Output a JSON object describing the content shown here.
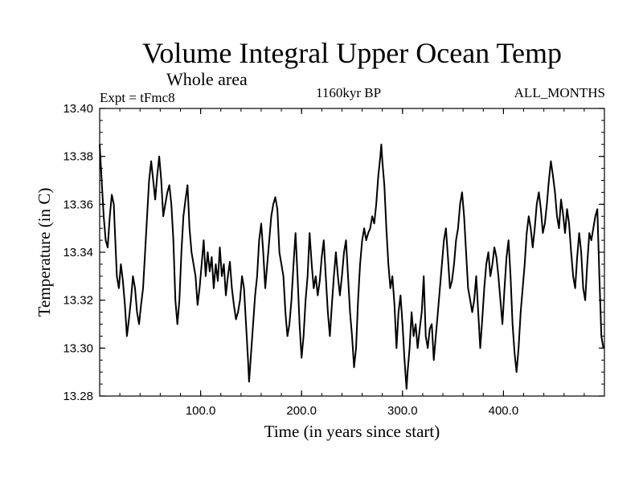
{
  "chart_data": {
    "type": "line",
    "title": "Volume Integral Upper Ocean Temp",
    "subtitle": "Whole area",
    "experiment": "Expt = tFmc8",
    "period": "1160kyr BP",
    "months": "ALL_MONTHS",
    "xlabel": "Time (in years since start)",
    "ylabel": "Temperature (in C)",
    "xlim": [
      0,
      500
    ],
    "ylim": [
      13.28,
      13.4
    ],
    "xticks": [
      100,
      200,
      300,
      400
    ],
    "xtick_labels": [
      "100.0",
      "200.0",
      "300.0",
      "400.0"
    ],
    "yticks": [
      13.28,
      13.3,
      13.32,
      13.34,
      13.36,
      13.38,
      13.4
    ],
    "ytick_labels": [
      "13.28",
      "13.30",
      "13.32",
      "13.34",
      "13.36",
      "13.38",
      "13.40"
    ],
    "series": [
      {
        "name": "Temperature",
        "points": [
          [
            0,
            13.385
          ],
          [
            2,
            13.37
          ],
          [
            4,
            13.355
          ],
          [
            6,
            13.345
          ],
          [
            8,
            13.342
          ],
          [
            10,
            13.355
          ],
          [
            12,
            13.364
          ],
          [
            14,
            13.36
          ],
          [
            15,
            13.35
          ],
          [
            17,
            13.33
          ],
          [
            19,
            13.325
          ],
          [
            21,
            13.335
          ],
          [
            23,
            13.328
          ],
          [
            25,
            13.318
          ],
          [
            27,
            13.305
          ],
          [
            29,
            13.312
          ],
          [
            31,
            13.32
          ],
          [
            33,
            13.33
          ],
          [
            35,
            13.325
          ],
          [
            37,
            13.315
          ],
          [
            39,
            13.31
          ],
          [
            41,
            13.318
          ],
          [
            43,
            13.325
          ],
          [
            45,
            13.34
          ],
          [
            47,
            13.355
          ],
          [
            49,
            13.37
          ],
          [
            51,
            13.378
          ],
          [
            53,
            13.37
          ],
          [
            55,
            13.362
          ],
          [
            57,
            13.372
          ],
          [
            59,
            13.38
          ],
          [
            61,
            13.37
          ],
          [
            63,
            13.355
          ],
          [
            65,
            13.36
          ],
          [
            67,
            13.365
          ],
          [
            69,
            13.368
          ],
          [
            71,
            13.36
          ],
          [
            73,
            13.345
          ],
          [
            75,
            13.32
          ],
          [
            77,
            13.31
          ],
          [
            79,
            13.32
          ],
          [
            81,
            13.34
          ],
          [
            83,
            13.355
          ],
          [
            85,
            13.362
          ],
          [
            87,
            13.368
          ],
          [
            89,
            13.35
          ],
          [
            91,
            13.34
          ],
          [
            93,
            13.335
          ],
          [
            95,
            13.33
          ],
          [
            97,
            13.318
          ],
          [
            99,
            13.325
          ],
          [
            101,
            13.335
          ],
          [
            103,
            13.345
          ],
          [
            105,
            13.33
          ],
          [
            107,
            13.34
          ],
          [
            109,
            13.332
          ],
          [
            111,
            13.338
          ],
          [
            113,
            13.325
          ],
          [
            115,
            13.335
          ],
          [
            117,
            13.328
          ],
          [
            119,
            13.342
          ],
          [
            121,
            13.33
          ],
          [
            123,
            13.335
          ],
          [
            125,
            13.322
          ],
          [
            127,
            13.33
          ],
          [
            129,
            13.336
          ],
          [
            131,
            13.325
          ],
          [
            133,
            13.318
          ],
          [
            135,
            13.312
          ],
          [
            137,
            13.315
          ],
          [
            139,
            13.32
          ],
          [
            141,
            13.33
          ],
          [
            143,
            13.325
          ],
          [
            145,
            13.31
          ],
          [
            147,
            13.295
          ],
          [
            148,
            13.286
          ],
          [
            150,
            13.298
          ],
          [
            152,
            13.31
          ],
          [
            154,
            13.322
          ],
          [
            156,
            13.33
          ],
          [
            158,
            13.345
          ],
          [
            160,
            13.352
          ],
          [
            162,
            13.34
          ],
          [
            164,
            13.325
          ],
          [
            166,
            13.335
          ],
          [
            168,
            13.345
          ],
          [
            170,
            13.355
          ],
          [
            172,
            13.36
          ],
          [
            174,
            13.363
          ],
          [
            176,
            13.358
          ],
          [
            178,
            13.34
          ],
          [
            180,
            13.335
          ],
          [
            182,
            13.33
          ],
          [
            184,
            13.315
          ],
          [
            186,
            13.305
          ],
          [
            188,
            13.31
          ],
          [
            190,
            13.32
          ],
          [
            192,
            13.335
          ],
          [
            194,
            13.348
          ],
          [
            196,
            13.33
          ],
          [
            198,
            13.31
          ],
          [
            200,
            13.296
          ],
          [
            202,
            13.305
          ],
          [
            204,
            13.32
          ],
          [
            206,
            13.33
          ],
          [
            208,
            13.348
          ],
          [
            210,
            13.335
          ],
          [
            212,
            13.325
          ],
          [
            214,
            13.33
          ],
          [
            216,
            13.322
          ],
          [
            218,
            13.328
          ],
          [
            220,
            13.338
          ],
          [
            222,
            13.345
          ],
          [
            224,
            13.33
          ],
          [
            226,
            13.315
          ],
          [
            228,
            13.305
          ],
          [
            230,
            13.318
          ],
          [
            232,
            13.33
          ],
          [
            234,
            13.34
          ],
          [
            236,
            13.33
          ],
          [
            238,
            13.322
          ],
          [
            240,
            13.33
          ],
          [
            242,
            13.34
          ],
          [
            244,
            13.345
          ],
          [
            246,
            13.33
          ],
          [
            248,
            13.315
          ],
          [
            250,
            13.305
          ],
          [
            252,
            13.292
          ],
          [
            254,
            13.3
          ],
          [
            256,
            13.32
          ],
          [
            258,
            13.335
          ],
          [
            260,
            13.345
          ],
          [
            262,
            13.35
          ],
          [
            264,
            13.345
          ],
          [
            266,
            13.348
          ],
          [
            268,
            13.35
          ],
          [
            270,
            13.355
          ],
          [
            272,
            13.352
          ],
          [
            274,
            13.36
          ],
          [
            276,
            13.372
          ],
          [
            278,
            13.38
          ],
          [
            279,
            13.385
          ],
          [
            280,
            13.378
          ],
          [
            282,
            13.368
          ],
          [
            284,
            13.35
          ],
          [
            286,
            13.335
          ],
          [
            288,
            13.325
          ],
          [
            290,
            13.33
          ],
          [
            292,
            13.318
          ],
          [
            294,
            13.3
          ],
          [
            296,
            13.315
          ],
          [
            298,
            13.322
          ],
          [
            300,
            13.31
          ],
          [
            302,
            13.295
          ],
          [
            304,
            13.283
          ],
          [
            305,
            13.29
          ],
          [
            307,
            13.3
          ],
          [
            309,
            13.315
          ],
          [
            311,
            13.305
          ],
          [
            313,
            13.31
          ],
          [
            315,
            13.3
          ],
          [
            317,
            13.308
          ],
          [
            319,
            13.315
          ],
          [
            321,
            13.33
          ],
          [
            323,
            13.305
          ],
          [
            325,
            13.3
          ],
          [
            327,
            13.308
          ],
          [
            329,
            13.31
          ],
          [
            331,
            13.295
          ],
          [
            333,
            13.305
          ],
          [
            335,
            13.315
          ],
          [
            337,
            13.325
          ],
          [
            339,
            13.335
          ],
          [
            341,
            13.345
          ],
          [
            343,
            13.35
          ],
          [
            345,
            13.338
          ],
          [
            347,
            13.325
          ],
          [
            349,
            13.328
          ],
          [
            351,
            13.335
          ],
          [
            353,
            13.345
          ],
          [
            355,
            13.35
          ],
          [
            357,
            13.36
          ],
          [
            359,
            13.365
          ],
          [
            361,
            13.355
          ],
          [
            363,
            13.34
          ],
          [
            365,
            13.325
          ],
          [
            367,
            13.32
          ],
          [
            369,
            13.315
          ],
          [
            371,
            13.32
          ],
          [
            373,
            13.33
          ],
          [
            375,
            13.315
          ],
          [
            377,
            13.3
          ],
          [
            379,
            13.312
          ],
          [
            381,
            13.325
          ],
          [
            383,
            13.335
          ],
          [
            385,
            13.34
          ],
          [
            387,
            13.33
          ],
          [
            389,
            13.335
          ],
          [
            391,
            13.342
          ],
          [
            393,
            13.338
          ],
          [
            395,
            13.33
          ],
          [
            397,
            13.32
          ],
          [
            399,
            13.31
          ],
          [
            401,
            13.325
          ],
          [
            403,
            13.338
          ],
          [
            405,
            13.345
          ],
          [
            407,
            13.33
          ],
          [
            409,
            13.31
          ],
          [
            411,
            13.298
          ],
          [
            413,
            13.29
          ],
          [
            415,
            13.3
          ],
          [
            417,
            13.315
          ],
          [
            419,
            13.325
          ],
          [
            421,
            13.335
          ],
          [
            423,
            13.348
          ],
          [
            425,
            13.355
          ],
          [
            427,
            13.35
          ],
          [
            429,
            13.342
          ],
          [
            431,
            13.35
          ],
          [
            433,
            13.36
          ],
          [
            435,
            13.365
          ],
          [
            437,
            13.358
          ],
          [
            439,
            13.348
          ],
          [
            441,
            13.352
          ],
          [
            443,
            13.36
          ],
          [
            445,
            13.37
          ],
          [
            447,
            13.378
          ],
          [
            449,
            13.372
          ],
          [
            451,
            13.365
          ],
          [
            453,
            13.355
          ],
          [
            455,
            13.35
          ],
          [
            457,
            13.362
          ],
          [
            459,
            13.356
          ],
          [
            461,
            13.348
          ],
          [
            463,
            13.358
          ],
          [
            465,
            13.352
          ],
          [
            467,
            13.34
          ],
          [
            469,
            13.33
          ],
          [
            471,
            13.325
          ],
          [
            473,
            13.338
          ],
          [
            475,
            13.348
          ],
          [
            477,
            13.34
          ],
          [
            479,
            13.325
          ],
          [
            481,
            13.32
          ],
          [
            483,
            13.335
          ],
          [
            485,
            13.348
          ],
          [
            487,
            13.345
          ],
          [
            489,
            13.35
          ],
          [
            491,
            13.355
          ],
          [
            493,
            13.358
          ],
          [
            495,
            13.33
          ],
          [
            497,
            13.305
          ],
          [
            499,
            13.3
          ]
        ]
      }
    ]
  }
}
